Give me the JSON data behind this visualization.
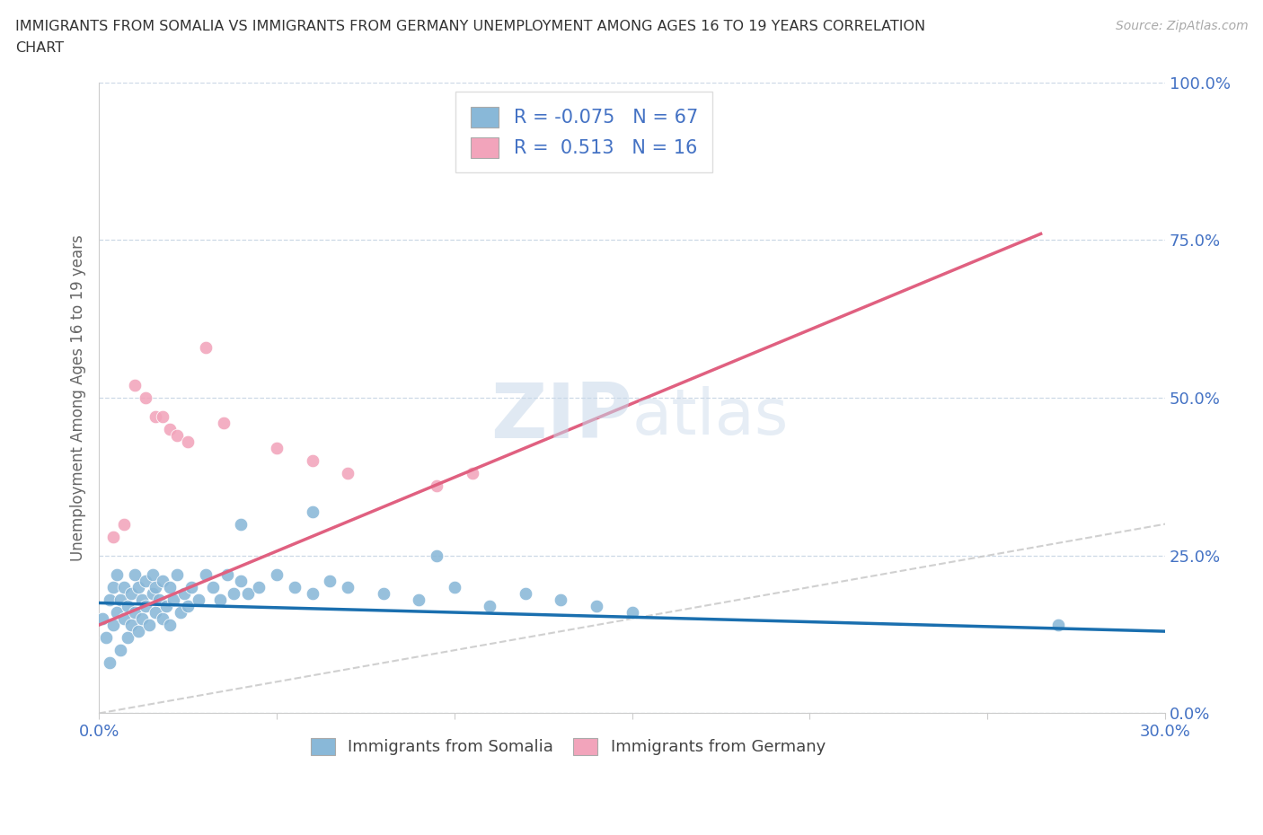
{
  "title_line1": "IMMIGRANTS FROM SOMALIA VS IMMIGRANTS FROM GERMANY UNEMPLOYMENT AMONG AGES 16 TO 19 YEARS CORRELATION",
  "title_line2": "CHART",
  "source": "Source: ZipAtlas.com",
  "ylabel": "Unemployment Among Ages 16 to 19 years",
  "xlim": [
    0.0,
    0.3
  ],
  "ylim": [
    0.0,
    1.0
  ],
  "ytick_labels": [
    "0.0%",
    "25.0%",
    "50.0%",
    "75.0%",
    "100.0%"
  ],
  "ytick_vals": [
    0.0,
    0.25,
    0.5,
    0.75,
    1.0
  ],
  "xtick_vals": [
    0.0,
    0.05,
    0.1,
    0.15,
    0.2,
    0.25,
    0.3
  ],
  "xtick_labels": [
    "0.0%",
    "",
    "",
    "",
    "",
    "",
    "30.0%"
  ],
  "somalia_color": "#89b8d8",
  "germany_color": "#f2a4bb",
  "somalia_line_color": "#1a6faf",
  "germany_line_color": "#e06080",
  "diagonal_color": "#c8c8c8",
  "R_somalia": -0.075,
  "N_somalia": 67,
  "R_germany": 0.513,
  "N_germany": 16,
  "watermark_zip": "ZIP",
  "watermark_atlas": "atlas",
  "background_color": "#ffffff",
  "somalia_x": [
    0.001,
    0.002,
    0.003,
    0.003,
    0.004,
    0.004,
    0.005,
    0.005,
    0.006,
    0.006,
    0.007,
    0.007,
    0.008,
    0.008,
    0.009,
    0.009,
    0.01,
    0.01,
    0.011,
    0.011,
    0.012,
    0.012,
    0.013,
    0.013,
    0.014,
    0.015,
    0.015,
    0.016,
    0.016,
    0.017,
    0.018,
    0.018,
    0.019,
    0.02,
    0.02,
    0.021,
    0.022,
    0.023,
    0.024,
    0.025,
    0.026,
    0.028,
    0.03,
    0.032,
    0.034,
    0.036,
    0.038,
    0.04,
    0.042,
    0.045,
    0.05,
    0.055,
    0.06,
    0.065,
    0.07,
    0.08,
    0.09,
    0.1,
    0.11,
    0.12,
    0.13,
    0.14,
    0.15,
    0.06,
    0.04,
    0.27,
    0.095
  ],
  "somalia_y": [
    0.15,
    0.12,
    0.18,
    0.08,
    0.14,
    0.2,
    0.16,
    0.22,
    0.1,
    0.18,
    0.15,
    0.2,
    0.17,
    0.12,
    0.19,
    0.14,
    0.22,
    0.16,
    0.13,
    0.2,
    0.18,
    0.15,
    0.21,
    0.17,
    0.14,
    0.19,
    0.22,
    0.16,
    0.2,
    0.18,
    0.15,
    0.21,
    0.17,
    0.14,
    0.2,
    0.18,
    0.22,
    0.16,
    0.19,
    0.17,
    0.2,
    0.18,
    0.22,
    0.2,
    0.18,
    0.22,
    0.19,
    0.21,
    0.19,
    0.2,
    0.22,
    0.2,
    0.19,
    0.21,
    0.2,
    0.19,
    0.18,
    0.2,
    0.17,
    0.19,
    0.18,
    0.17,
    0.16,
    0.32,
    0.3,
    0.14,
    0.25
  ],
  "germany_x": [
    0.004,
    0.007,
    0.01,
    0.013,
    0.016,
    0.018,
    0.02,
    0.022,
    0.025,
    0.03,
    0.035,
    0.05,
    0.06,
    0.07,
    0.095,
    0.105
  ],
  "germany_y": [
    0.28,
    0.3,
    0.52,
    0.5,
    0.47,
    0.47,
    0.45,
    0.44,
    0.43,
    0.58,
    0.46,
    0.42,
    0.4,
    0.38,
    0.36,
    0.38
  ],
  "somalia_line_x0": 0.0,
  "somalia_line_x1": 0.3,
  "somalia_line_y0": 0.175,
  "somalia_line_y1": 0.13,
  "germany_line_x0": 0.0,
  "germany_line_x1": 0.265,
  "germany_line_y0": 0.14,
  "germany_line_y1": 0.76
}
